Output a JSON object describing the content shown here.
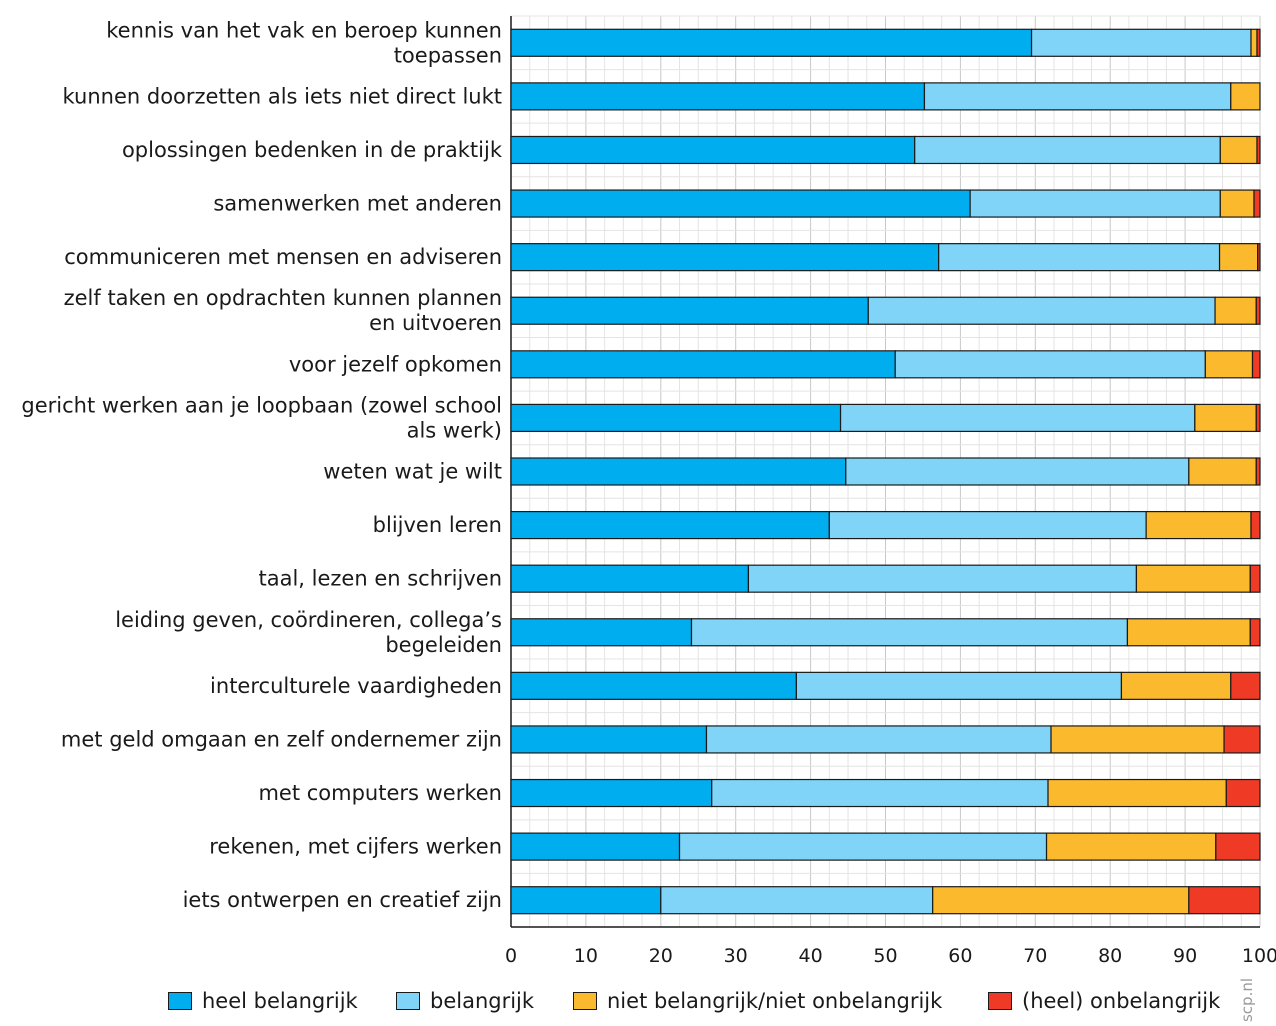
{
  "chart_data": {
    "type": "bar",
    "orientation": "horizontal",
    "stacked": true,
    "categories": [
      "kennis van het vak en beroep kunnen toepassen",
      "kunnen doorzetten als iets niet direct lukt",
      "oplossingen bedenken in de praktijk",
      "samenwerken met anderen",
      "communiceren met mensen en adviseren",
      "zelf taken en opdrachten kunnen plannen en uitvoeren",
      "voor jezelf opkomen",
      "gericht werken aan je loopbaan (zowel school als werk)",
      "weten wat je wilt",
      "blijven leren",
      "taal, lezen en schrijven",
      "leiding geven, coördineren, collega’s begeleiden",
      "interculturele vaardigheden",
      "met geld omgaan en zelf ondernemer zijn",
      "met computers werken",
      "rekenen, met cijfers werken",
      "iets ontwerpen en creatief zijn"
    ],
    "category_lines": [
      [
        "kennis van het vak en beroep kunnen",
        "toepassen"
      ],
      [
        "kunnen doorzetten als iets niet direct lukt"
      ],
      [
        "oplossingen bedenken in de praktijk"
      ],
      [
        "samenwerken met anderen"
      ],
      [
        "communiceren met mensen en adviseren"
      ],
      [
        "zelf taken en opdrachten kunnen plannen",
        "en uitvoeren"
      ],
      [
        "voor jezelf opkomen"
      ],
      [
        "gericht werken aan je loopbaan (zowel school",
        "als werk)"
      ],
      [
        "weten wat je wilt"
      ],
      [
        "blijven leren"
      ],
      [
        "taal, lezen en schrijven"
      ],
      [
        "leiding geven, coördineren, collega’s",
        "begeleiden"
      ],
      [
        "interculturele vaardigheden"
      ],
      [
        "met geld omgaan en zelf ondernemer zijn"
      ],
      [
        "met computers werken"
      ],
      [
        "rekenen, met cijfers werken"
      ],
      [
        "iets ontwerpen en creatief zijn"
      ]
    ],
    "series": [
      {
        "name": "heel belangrijk",
        "color": "#00aeef",
        "values": [
          69.5,
          55.2,
          53.9,
          61.3,
          57.1,
          47.7,
          51.3,
          44.0,
          44.7,
          42.5,
          31.7,
          24.1,
          38.1,
          26.1,
          26.8,
          22.5,
          20.0
        ]
      },
      {
        "name": "belangrijk",
        "color": "#7fd4f7",
        "values": [
          29.3,
          40.9,
          40.8,
          33.4,
          37.5,
          46.3,
          41.4,
          47.3,
          45.8,
          42.3,
          51.8,
          58.2,
          43.4,
          46.0,
          44.9,
          49.0,
          36.3
        ]
      },
      {
        "name": "niet belangrijk/niet onbelangrijk",
        "color": "#fbb92d",
        "values": [
          0.8,
          3.9,
          4.9,
          4.5,
          5.1,
          5.5,
          6.3,
          8.2,
          9.0,
          14.0,
          15.2,
          16.4,
          14.6,
          23.1,
          23.8,
          22.6,
          34.2
        ]
      },
      {
        "name": "(heel) onbelangrijk",
        "color": "#ef3a26",
        "values": [
          0.4,
          0.0,
          0.4,
          0.8,
          0.3,
          0.5,
          1.0,
          0.5,
          0.5,
          1.2,
          1.3,
          1.3,
          3.9,
          4.8,
          4.5,
          5.9,
          9.5
        ]
      }
    ],
    "x_ticks": [
      0,
      10,
      20,
      30,
      40,
      50,
      60,
      70,
      80,
      90,
      100
    ],
    "xlim": [
      0,
      100
    ],
    "grid": true,
    "legend_position": "bottom"
  },
  "watermark": "scp.nl"
}
